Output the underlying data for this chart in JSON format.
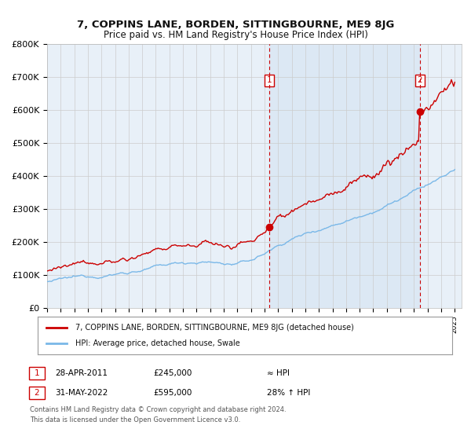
{
  "title": "7, COPPINS LANE, BORDEN, SITTINGBOURNE, ME9 8JG",
  "subtitle": "Price paid vs. HM Land Registry's House Price Index (HPI)",
  "ylabel_ticks": [
    "£0",
    "£100K",
    "£200K",
    "£300K",
    "£400K",
    "£500K",
    "£600K",
    "£700K",
    "£800K"
  ],
  "ylim": [
    0,
    800000
  ],
  "xlim_start": 1995.0,
  "xlim_end": 2025.5,
  "point1_x": 2011.33,
  "point1_y": 245000,
  "point2_x": 2022.42,
  "point2_y": 595000,
  "hpi_color": "#7ab8e8",
  "property_color": "#cc0000",
  "legend_property_label": "7, COPPINS LANE, BORDEN, SITTINGBOURNE, ME9 8JG (detached house)",
  "legend_hpi_label": "HPI: Average price, detached house, Swale",
  "annotation1_label": "1",
  "annotation1_date": "28-APR-2011",
  "annotation1_price": "£245,000",
  "annotation1_hpi": "≈ HPI",
  "annotation2_label": "2",
  "annotation2_date": "31-MAY-2022",
  "annotation2_price": "£595,000",
  "annotation2_hpi": "28% ↑ HPI",
  "footer": "Contains HM Land Registry data © Crown copyright and database right 2024.\nThis data is licensed under the Open Government Licence v3.0.",
  "bg_color": "#ffffff",
  "plot_bg_color": "#e8f0f8",
  "grid_color": "#cccccc",
  "vline_color": "#cc0000",
  "shade_color": "#dce8f4"
}
